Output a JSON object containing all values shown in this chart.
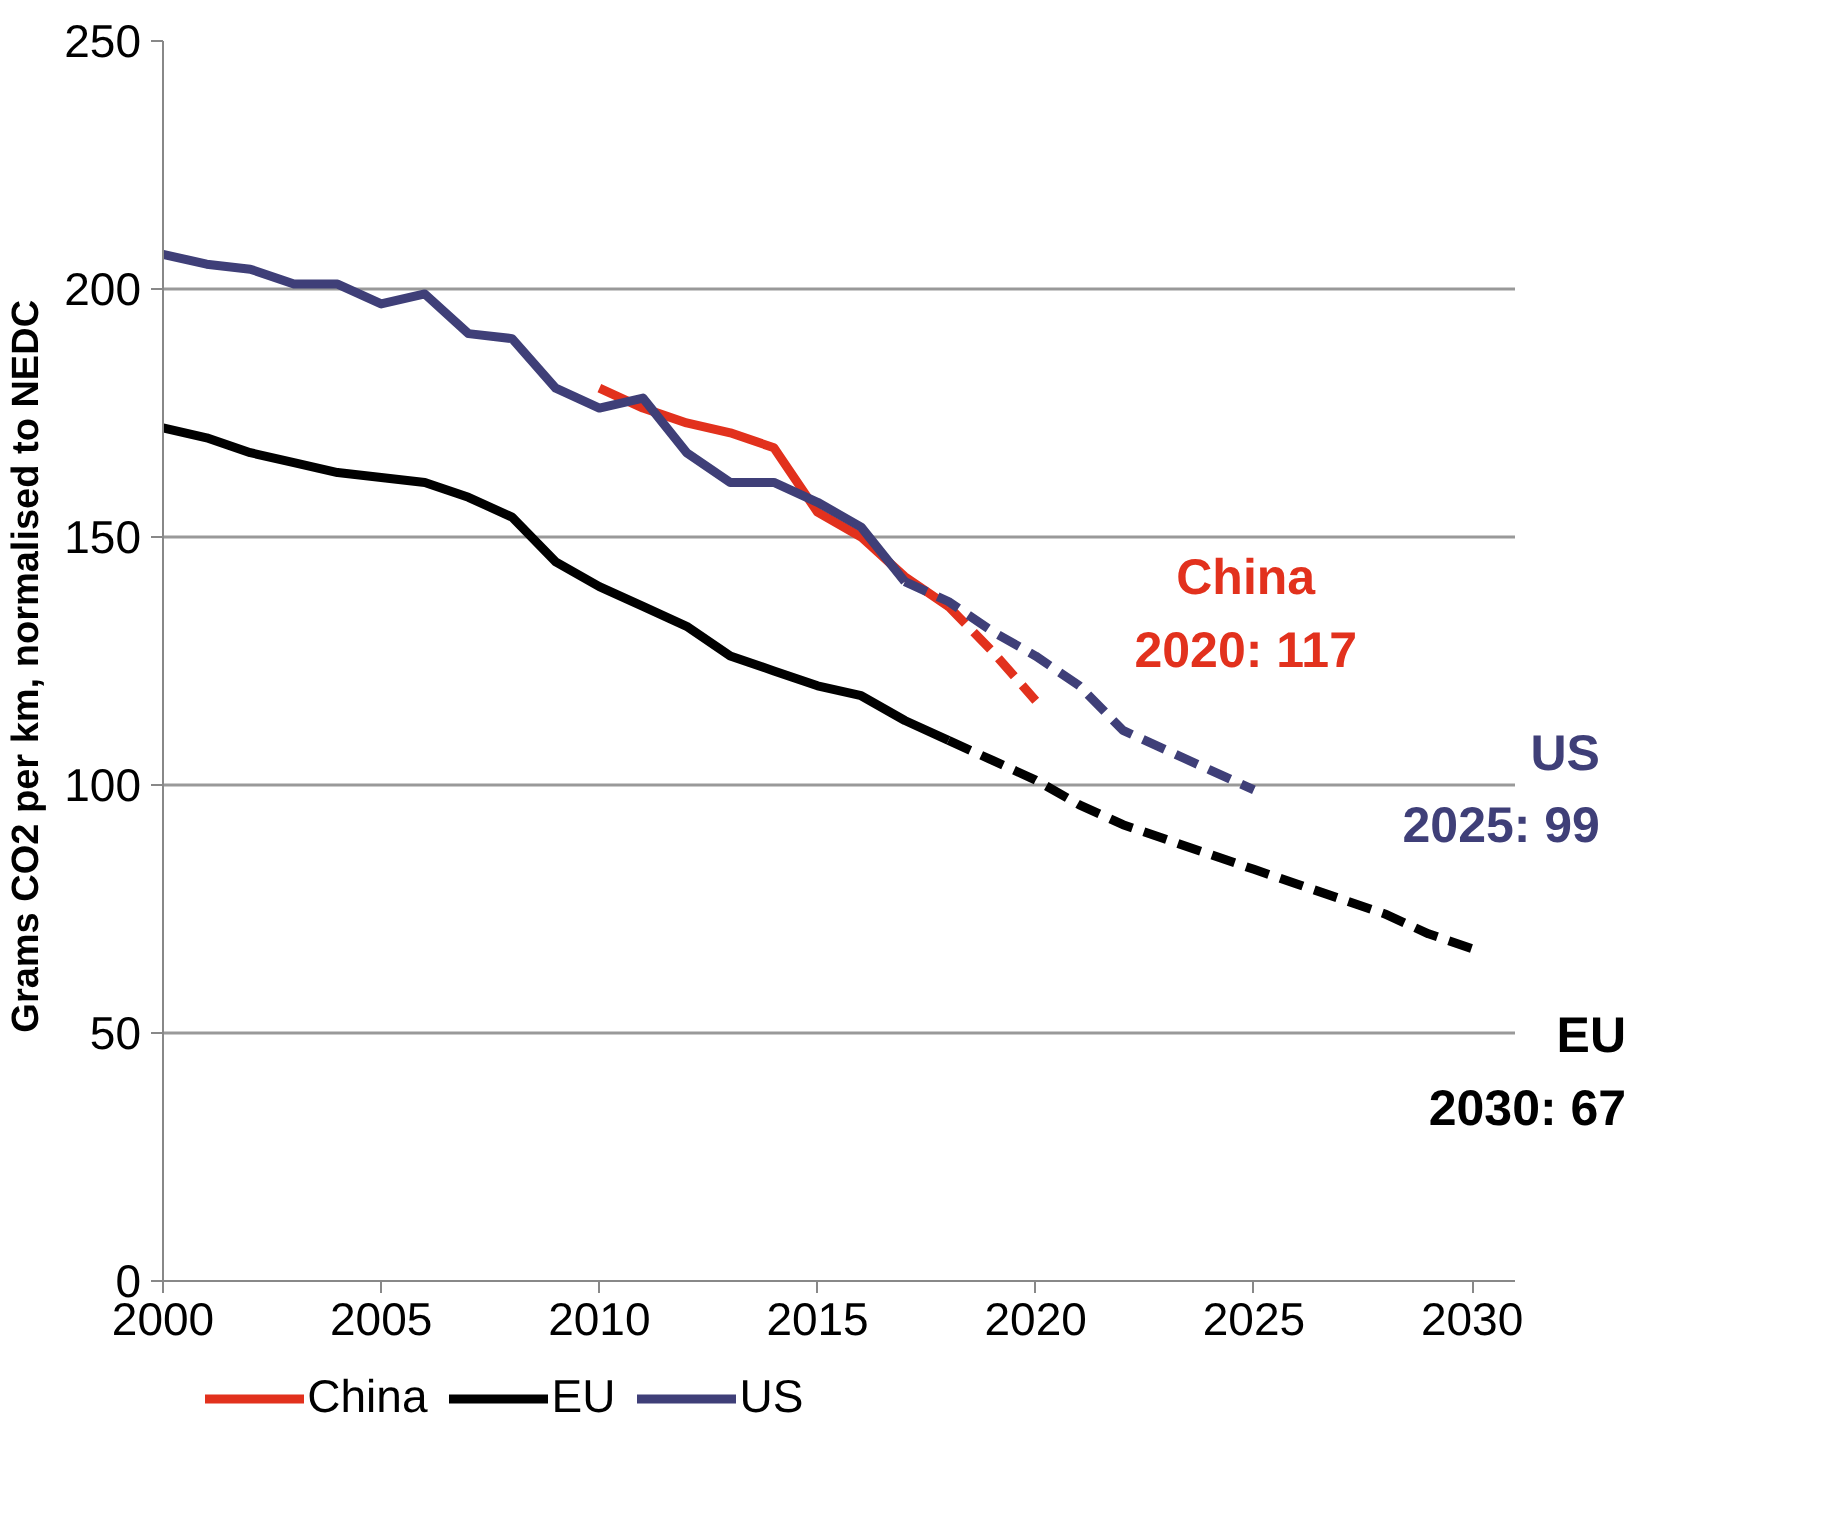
{
  "chart_data": {
    "type": "line",
    "ylabel": "Grams CO2 per km, normalised to  NEDC",
    "xlim": [
      2000,
      2031
    ],
    "xticks": [
      2000,
      2005,
      2010,
      2015,
      2020,
      2025,
      2030
    ],
    "ylim": [
      0,
      250
    ],
    "yticks": [
      0,
      50,
      100,
      150,
      200,
      250
    ],
    "grid": "y",
    "legend": "bottom",
    "marker": "none",
    "series": [
      {
        "name": "China",
        "color": "#e2311d",
        "line_style": "solid",
        "x": [
          2010,
          2011,
          2012,
          2013,
          2014,
          2015,
          2016,
          2017,
          2018
        ],
        "values": [
          180,
          176,
          173,
          171,
          168,
          155,
          150,
          142,
          136
        ]
      },
      {
        "name": "EU",
        "color": "#000000",
        "line_style": "solid",
        "x": [
          2000,
          2001,
          2002,
          2003,
          2004,
          2005,
          2006,
          2007,
          2008,
          2009,
          2010,
          2011,
          2012,
          2013,
          2014,
          2015,
          2016,
          2017,
          2018
        ],
        "values": [
          172,
          170,
          167,
          165,
          163,
          162,
          161,
          158,
          154,
          145,
          140,
          136,
          132,
          126,
          123,
          120,
          118,
          113,
          109
        ]
      },
      {
        "name": "US",
        "color": "#3f3f78",
        "line_style": "solid",
        "x": [
          2000,
          2001,
          2002,
          2003,
          2004,
          2005,
          2006,
          2007,
          2008,
          2009,
          2010,
          2011,
          2012,
          2013,
          2014,
          2015,
          2016,
          2017
        ],
        "values": [
          207,
          205,
          204,
          201,
          201,
          197,
          199,
          191,
          190,
          180,
          176,
          178,
          167,
          161,
          161,
          157,
          152,
          141
        ]
      },
      {
        "color": "#e2311d",
        "line_style": "dashed",
        "x": [
          2018,
          2019,
          2020
        ],
        "values": [
          136,
          127,
          117
        ]
      },
      {
        "color": "#000000",
        "line_style": "dashed",
        "x": [
          2018,
          2019,
          2020,
          2021,
          2022,
          2023,
          2024,
          2025,
          2026,
          2027,
          2028,
          2029,
          2030
        ],
        "values": [
          109,
          105,
          101,
          96,
          92,
          89,
          86,
          83,
          80,
          77,
          74,
          70,
          67
        ]
      },
      {
        "color": "#3f3f78",
        "line_style": "dashed",
        "x": [
          2017,
          2018,
          2019,
          2020,
          2021,
          2022,
          2023,
          2024,
          2025
        ],
        "values": [
          141,
          137,
          131,
          126,
          120,
          111,
          107,
          103,
          99
        ]
      }
    ],
    "annotations": [
      {
        "text": "China 2020: 117",
        "x": 2020,
        "y": 117
      },
      {
        "text": "EU 2030: 67",
        "x": 2030,
        "y": 67
      },
      {
        "text": "US 2025: 99",
        "x": 2025,
        "y": 99
      }
    ]
  }
}
